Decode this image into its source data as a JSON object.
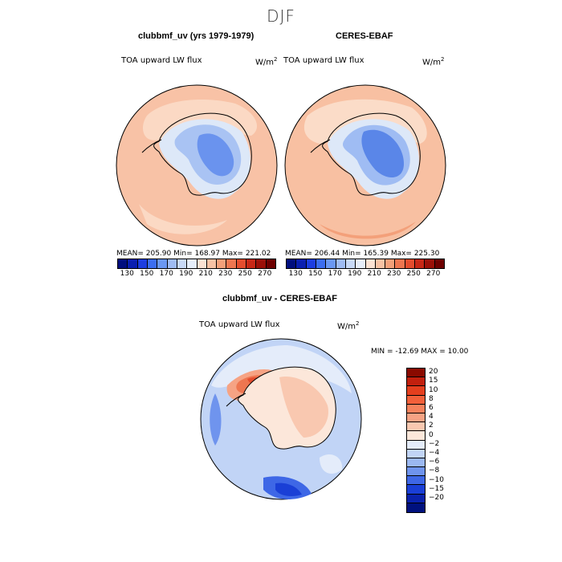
{
  "season": "DJF",
  "panels": [
    {
      "title": "clubbmf_uv (yrs 1979-1979)",
      "variable": "TOA upward LW flux",
      "units": "W/m",
      "units_sup": "2",
      "stats": "MEAN= 205.90  Min= 168.97  Max= 221.02"
    },
    {
      "title": "CERES-EBAF",
      "variable": "TOA upward LW flux",
      "units": "W/m",
      "units_sup": "2",
      "stats": "MEAN= 206.44  Min= 165.39  Max= 225.30"
    }
  ],
  "colorbar_top": {
    "labels": [
      "130",
      "150",
      "170",
      "190",
      "210",
      "230",
      "250",
      "270"
    ],
    "colors": [
      "#000e7e",
      "#0a1fb0",
      "#1d3ee0",
      "#3c6ef0",
      "#6b98f2",
      "#9fbcf3",
      "#c8d9f6",
      "#e6eefa",
      "#fbe2d3",
      "#f7c2a4",
      "#f3a07a",
      "#ee7650",
      "#e44d2e",
      "#c72816",
      "#9b1008",
      "#6e0000"
    ]
  },
  "diff_panel": {
    "title": "clubbmf_uv - CERES-EBAF",
    "variable": "TOA upward LW flux",
    "units": "W/m",
    "units_sup": "2",
    "min_max": "MIN = -12.69  MAX =   10.00"
  },
  "colorbar_diff": {
    "labels": [
      "20",
      "15",
      "10",
      "8",
      "6",
      "4",
      "2",
      "0",
      "-2",
      "-4",
      "-6",
      "-8",
      "-10",
      "-15",
      "-20"
    ],
    "colors": [
      "#8a0a00",
      "#c2200e",
      "#e43f1e",
      "#f2603a",
      "#f5825c",
      "#f6a384",
      "#f9c8b0",
      "#fce7da",
      "#e4ecfa",
      "#c1d4f6",
      "#9bb8f2",
      "#6f94ee",
      "#3e67e6",
      "#1a3fd6",
      "#0a22ac",
      "#00117e"
    ]
  },
  "colors": {
    "land_outline": "#000000",
    "warm_ocean": "#f8c4a8",
    "cold_interior": "#5a86e8"
  }
}
